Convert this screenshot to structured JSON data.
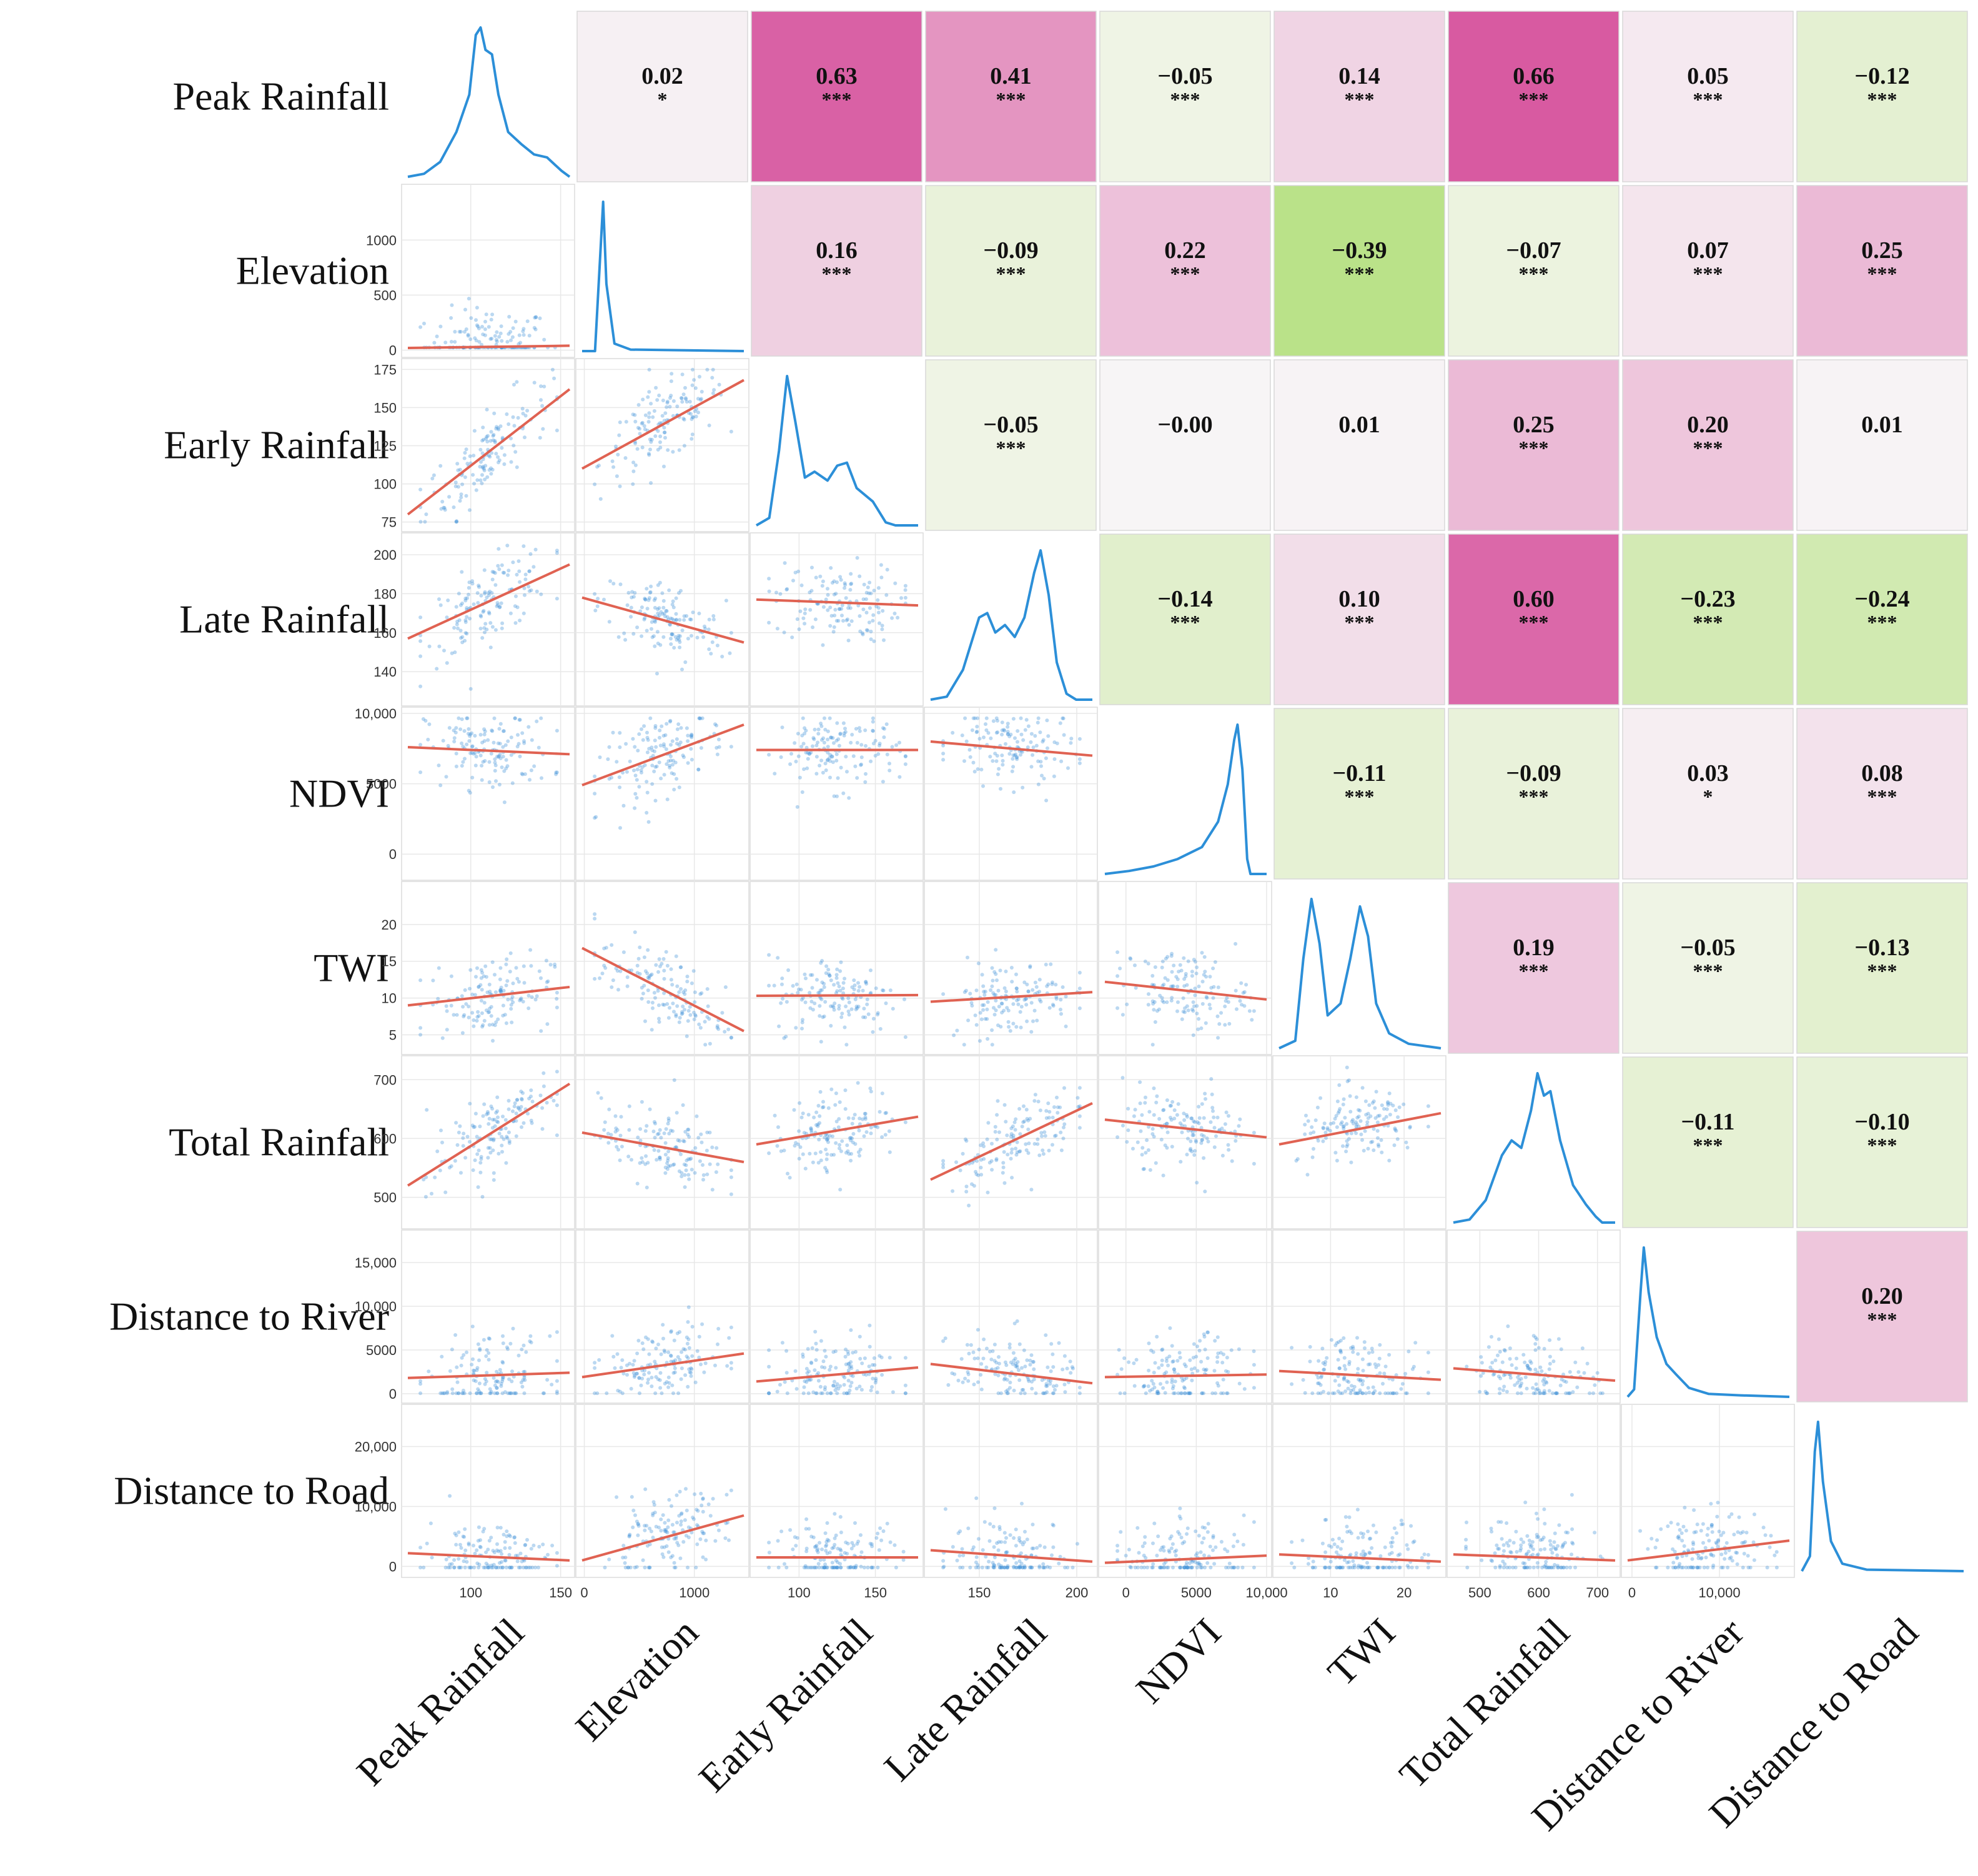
{
  "chart_data": {
    "type": "scatter",
    "title": "",
    "variables": [
      "Peak Rainfall",
      "Elevation",
      "Early Rainfall",
      "Late Rainfall",
      "NDVI",
      "TWI",
      "Total Rainfall",
      "Distance to River",
      "Distance to Road"
    ],
    "ranges": [
      [
        65,
        155
      ],
      [
        -20,
        1450
      ],
      [
        72,
        178
      ],
      [
        125,
        208
      ],
      [
        -1500,
        10000
      ],
      [
        3,
        25
      ],
      [
        455,
        730
      ],
      [
        -500,
        18000
      ],
      [
        -1000,
        26000
      ]
    ],
    "ticks": [
      {
        "values": [
          100,
          150
        ],
        "labels": [
          "100",
          "150"
        ]
      },
      {
        "values": [
          0,
          500,
          1000
        ],
        "labels": [
          "0",
          "500",
          "1000"
        ]
      },
      {
        "values": [
          75,
          100,
          125,
          150,
          175
        ],
        "labels": [
          "75",
          "100",
          "125",
          "150",
          "175"
        ]
      },
      {
        "values": [
          140,
          160,
          180,
          200
        ],
        "labels": [
          "140",
          "160",
          "180",
          "200"
        ]
      },
      {
        "values": [
          0,
          5000,
          10000
        ],
        "labels": [
          "0",
          "5000",
          "10,000"
        ]
      },
      {
        "values": [
          5,
          10,
          15,
          20
        ],
        "labels": [
          "5",
          "10",
          "15",
          "20"
        ]
      },
      {
        "values": [
          500,
          600,
          700
        ],
        "labels": [
          "500",
          "600",
          "700"
        ]
      },
      {
        "values": [
          0,
          5000,
          10000,
          15000
        ],
        "labels": [
          "0",
          "5000",
          "10,000",
          "15,000"
        ]
      },
      {
        "values": [
          0,
          10000,
          20000
        ],
        "labels": [
          "0",
          "10,000",
          "20,000"
        ]
      }
    ],
    "x_ticks": [
      {
        "values": [
          100,
          150
        ],
        "labels": [
          "100",
          "150"
        ]
      },
      {
        "values": [
          0,
          1000
        ],
        "labels": [
          "0",
          "1000"
        ]
      },
      {
        "values": [
          100,
          150
        ],
        "labels": [
          "100",
          "150"
        ]
      },
      {
        "values": [
          150,
          200
        ],
        "labels": [
          "150",
          "200"
        ]
      },
      {
        "values": [
          0,
          5000,
          10000
        ],
        "labels": [
          "0",
          "5000",
          "10,000"
        ]
      },
      {
        "values": [
          10,
          20
        ],
        "labels": [
          "10",
          "20"
        ]
      },
      {
        "values": [
          500,
          600,
          700
        ],
        "labels": [
          "500",
          "600",
          "700"
        ]
      },
      {
        "values": [
          0,
          10000
        ],
        "labels": [
          "0",
          "10,000"
        ]
      },
      {
        "values": [],
        "labels": []
      }
    ],
    "correlations": [
      {
        "row": 0,
        "col": 1,
        "value": "0.02",
        "sig": "*",
        "r": 0.02
      },
      {
        "row": 0,
        "col": 2,
        "value": "0.63",
        "sig": "***",
        "r": 0.63
      },
      {
        "row": 0,
        "col": 3,
        "value": "0.41",
        "sig": "***",
        "r": 0.41
      },
      {
        "row": 0,
        "col": 4,
        "value": "−0.05",
        "sig": "***",
        "r": -0.05
      },
      {
        "row": 0,
        "col": 5,
        "value": "0.14",
        "sig": "***",
        "r": 0.14
      },
      {
        "row": 0,
        "col": 6,
        "value": "0.66",
        "sig": "***",
        "r": 0.66
      },
      {
        "row": 0,
        "col": 7,
        "value": "0.05",
        "sig": "***",
        "r": 0.05
      },
      {
        "row": 0,
        "col": 8,
        "value": "−0.12",
        "sig": "***",
        "r": -0.12
      },
      {
        "row": 1,
        "col": 2,
        "value": "0.16",
        "sig": "***",
        "r": 0.16
      },
      {
        "row": 1,
        "col": 3,
        "value": "−0.09",
        "sig": "***",
        "r": -0.09
      },
      {
        "row": 1,
        "col": 4,
        "value": "0.22",
        "sig": "***",
        "r": 0.22
      },
      {
        "row": 1,
        "col": 5,
        "value": "−0.39",
        "sig": "***",
        "r": -0.39
      },
      {
        "row": 1,
        "col": 6,
        "value": "−0.07",
        "sig": "***",
        "r": -0.07
      },
      {
        "row": 1,
        "col": 7,
        "value": "0.07",
        "sig": "***",
        "r": 0.07
      },
      {
        "row": 1,
        "col": 8,
        "value": "0.25",
        "sig": "***",
        "r": 0.25
      },
      {
        "row": 2,
        "col": 3,
        "value": "−0.05",
        "sig": "***",
        "r": -0.05
      },
      {
        "row": 2,
        "col": 4,
        "value": "−0.00",
        "sig": "",
        "r": 0.0
      },
      {
        "row": 2,
        "col": 5,
        "value": "0.01",
        "sig": "",
        "r": 0.01
      },
      {
        "row": 2,
        "col": 6,
        "value": "0.25",
        "sig": "***",
        "r": 0.25
      },
      {
        "row": 2,
        "col": 7,
        "value": "0.20",
        "sig": "***",
        "r": 0.2
      },
      {
        "row": 2,
        "col": 8,
        "value": "0.01",
        "sig": "",
        "r": 0.01
      },
      {
        "row": 3,
        "col": 4,
        "value": "−0.14",
        "sig": "***",
        "r": -0.14
      },
      {
        "row": 3,
        "col": 5,
        "value": "0.10",
        "sig": "***",
        "r": 0.1
      },
      {
        "row": 3,
        "col": 6,
        "value": "0.60",
        "sig": "***",
        "r": 0.6
      },
      {
        "row": 3,
        "col": 7,
        "value": "−0.23",
        "sig": "***",
        "r": -0.23
      },
      {
        "row": 3,
        "col": 8,
        "value": "−0.24",
        "sig": "***",
        "r": -0.24
      },
      {
        "row": 4,
        "col": 5,
        "value": "−0.11",
        "sig": "***",
        "r": -0.11
      },
      {
        "row": 4,
        "col": 6,
        "value": "−0.09",
        "sig": "***",
        "r": -0.09
      },
      {
        "row": 4,
        "col": 7,
        "value": "0.03",
        "sig": "*",
        "r": 0.03
      },
      {
        "row": 4,
        "col": 8,
        "value": "0.08",
        "sig": "***",
        "r": 0.08
      },
      {
        "row": 5,
        "col": 6,
        "value": "0.19",
        "sig": "***",
        "r": 0.19
      },
      {
        "row": 5,
        "col": 7,
        "value": "−0.05",
        "sig": "***",
        "r": -0.05
      },
      {
        "row": 5,
        "col": 8,
        "value": "−0.13",
        "sig": "***",
        "r": -0.13
      },
      {
        "row": 6,
        "col": 7,
        "value": "−0.11",
        "sig": "***",
        "r": -0.11
      },
      {
        "row": 6,
        "col": 8,
        "value": "−0.10",
        "sig": "***",
        "r": -0.1
      },
      {
        "row": 7,
        "col": 8,
        "value": "0.20",
        "sig": "***",
        "r": 0.2
      }
    ],
    "regression_lines": [
      {
        "row": 1,
        "col": 0,
        "y0": 20,
        "y1": 40
      },
      {
        "row": 2,
        "col": 0,
        "y0": 80,
        "y1": 162
      },
      {
        "row": 2,
        "col": 1,
        "y0": 110,
        "y1": 168
      },
      {
        "row": 3,
        "col": 0,
        "y0": 157,
        "y1": 195
      },
      {
        "row": 3,
        "col": 1,
        "y0": 178,
        "y1": 155
      },
      {
        "row": 3,
        "col": 2,
        "y0": 177,
        "y1": 174
      },
      {
        "row": 4,
        "col": 0,
        "y0": 7600,
        "y1": 7100
      },
      {
        "row": 4,
        "col": 1,
        "y0": 4900,
        "y1": 9200
      },
      {
        "row": 4,
        "col": 2,
        "y0": 7400,
        "y1": 7400
      },
      {
        "row": 4,
        "col": 3,
        "y0": 8000,
        "y1": 7000
      },
      {
        "row": 5,
        "col": 0,
        "y0": 9.0,
        "y1": 11.5
      },
      {
        "row": 5,
        "col": 1,
        "y0": 16.8,
        "y1": 5.5
      },
      {
        "row": 5,
        "col": 2,
        "y0": 10.3,
        "y1": 10.4
      },
      {
        "row": 5,
        "col": 3,
        "y0": 9.5,
        "y1": 10.8
      },
      {
        "row": 5,
        "col": 4,
        "y0": 12.2,
        "y1": 9.8
      },
      {
        "row": 6,
        "col": 0,
        "y0": 520,
        "y1": 693
      },
      {
        "row": 6,
        "col": 1,
        "y0": 610,
        "y1": 560
      },
      {
        "row": 6,
        "col": 2,
        "y0": 590,
        "y1": 637
      },
      {
        "row": 6,
        "col": 3,
        "y0": 530,
        "y1": 660
      },
      {
        "row": 6,
        "col": 4,
        "y0": 632,
        "y1": 602
      },
      {
        "row": 6,
        "col": 5,
        "y0": 590,
        "y1": 643
      },
      {
        "row": 7,
        "col": 0,
        "y0": 1800,
        "y1": 2400
      },
      {
        "row": 7,
        "col": 1,
        "y0": 1900,
        "y1": 4600
      },
      {
        "row": 7,
        "col": 2,
        "y0": 1400,
        "y1": 3000
      },
      {
        "row": 7,
        "col": 3,
        "y0": 3400,
        "y1": 1200
      },
      {
        "row": 7,
        "col": 4,
        "y0": 1900,
        "y1": 2200
      },
      {
        "row": 7,
        "col": 5,
        "y0": 2600,
        "y1": 1600
      },
      {
        "row": 7,
        "col": 6,
        "y0": 2900,
        "y1": 1500
      },
      {
        "row": 8,
        "col": 0,
        "y0": 2200,
        "y1": 1000
      },
      {
        "row": 8,
        "col": 1,
        "y0": 1000,
        "y1": 8500
      },
      {
        "row": 8,
        "col": 2,
        "y0": 1500,
        "y1": 1500
      },
      {
        "row": 8,
        "col": 3,
        "y0": 2700,
        "y1": 800
      },
      {
        "row": 8,
        "col": 4,
        "y0": 600,
        "y1": 1800
      },
      {
        "row": 8,
        "col": 5,
        "y0": 2000,
        "y1": 800
      },
      {
        "row": 8,
        "col": 6,
        "y0": 2000,
        "y1": 1000
      },
      {
        "row": 8,
        "col": 7,
        "y0": 1000,
        "y1": 4300
      }
    ],
    "colors": {
      "points": "#3b8fd6",
      "density": "#2c8fd8",
      "regression": "#e06252",
      "positive": "#d6519c",
      "negative": "#b8e186",
      "neutral": "#f4f4f4",
      "grid": "#e8e8e8"
    }
  }
}
